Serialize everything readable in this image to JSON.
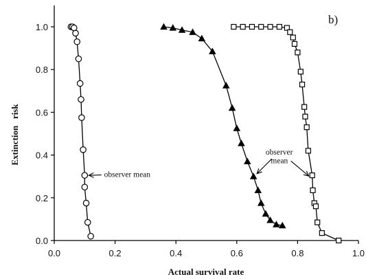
{
  "chart_data": {
    "type": "scatter",
    "panel_label": "b)",
    "xlabel": "Actual survival rate",
    "ylabel": "Extinction   risk",
    "xlim": [
      0.0,
      1.0
    ],
    "ylim": [
      0.0,
      1.0
    ],
    "xticks": [
      "0.0",
      "0.2",
      "0.4",
      "0.6",
      "0.8",
      "1.0"
    ],
    "yticks": [
      "0.0",
      "0.2",
      "0.4",
      "0.6",
      "0.8",
      "1.0"
    ],
    "grid": false,
    "series": [
      {
        "marker": "open-circle",
        "points": [
          [
            0.055,
            1.0
          ],
          [
            0.06,
            1.0
          ],
          [
            0.065,
            0.995
          ],
          [
            0.07,
            0.97
          ],
          [
            0.075,
            0.93
          ],
          [
            0.08,
            0.85
          ],
          [
            0.085,
            0.735
          ],
          [
            0.088,
            0.66
          ],
          [
            0.09,
            0.575
          ],
          [
            0.095,
            0.425
          ],
          [
            0.1,
            0.305
          ],
          [
            0.1,
            0.25
          ],
          [
            0.105,
            0.175
          ],
          [
            0.11,
            0.085
          ],
          [
            0.12,
            0.02
          ]
        ]
      },
      {
        "marker": "filled-triangle",
        "points": [
          [
            0.36,
            1.0
          ],
          [
            0.39,
            0.995
          ],
          [
            0.42,
            0.985
          ],
          [
            0.455,
            0.975
          ],
          [
            0.485,
            0.945
          ],
          [
            0.52,
            0.885
          ],
          [
            0.565,
            0.725
          ],
          [
            0.585,
            0.62
          ],
          [
            0.6,
            0.525
          ],
          [
            0.615,
            0.455
          ],
          [
            0.635,
            0.37
          ],
          [
            0.655,
            0.3
          ],
          [
            0.67,
            0.235
          ],
          [
            0.68,
            0.175
          ],
          [
            0.695,
            0.125
          ],
          [
            0.71,
            0.095
          ],
          [
            0.73,
            0.075
          ],
          [
            0.75,
            0.07
          ]
        ]
      },
      {
        "marker": "open-square",
        "points": [
          [
            0.59,
            1.0
          ],
          [
            0.62,
            1.0
          ],
          [
            0.65,
            1.0
          ],
          [
            0.68,
            1.0
          ],
          [
            0.71,
            1.0
          ],
          [
            0.74,
            1.0
          ],
          [
            0.765,
            0.995
          ],
          [
            0.775,
            0.975
          ],
          [
            0.785,
            0.95
          ],
          [
            0.79,
            0.92
          ],
          [
            0.8,
            0.88
          ],
          [
            0.81,
            0.79
          ],
          [
            0.815,
            0.73
          ],
          [
            0.822,
            0.625
          ],
          [
            0.825,
            0.58
          ],
          [
            0.83,
            0.53
          ],
          [
            0.835,
            0.42
          ],
          [
            0.848,
            0.305
          ],
          [
            0.85,
            0.235
          ],
          [
            0.855,
            0.175
          ],
          [
            0.86,
            0.16
          ],
          [
            0.865,
            0.085
          ],
          [
            0.88,
            0.035
          ],
          [
            0.935,
            0.0
          ]
        ]
      }
    ],
    "annotations": [
      {
        "text": "observer mean",
        "target_series": 0,
        "target_point": [
          0.1,
          0.305
        ],
        "text_at": [
          0.155,
          0.31
        ]
      },
      {
        "text": "observer",
        "target_series": 1,
        "target_point": [
          0.655,
          0.3
        ],
        "text_at": [
          0.67,
          0.415
        ]
      },
      {
        "text": "mean",
        "target_series": 1,
        "target_point": [
          0.655,
          0.3
        ],
        "text_at": [
          0.695,
          0.375
        ]
      },
      {
        "text": "observer",
        "target_series": 2,
        "target_point": [
          0.848,
          0.305
        ],
        "text_at": [
          0.67,
          0.415
        ]
      }
    ]
  }
}
